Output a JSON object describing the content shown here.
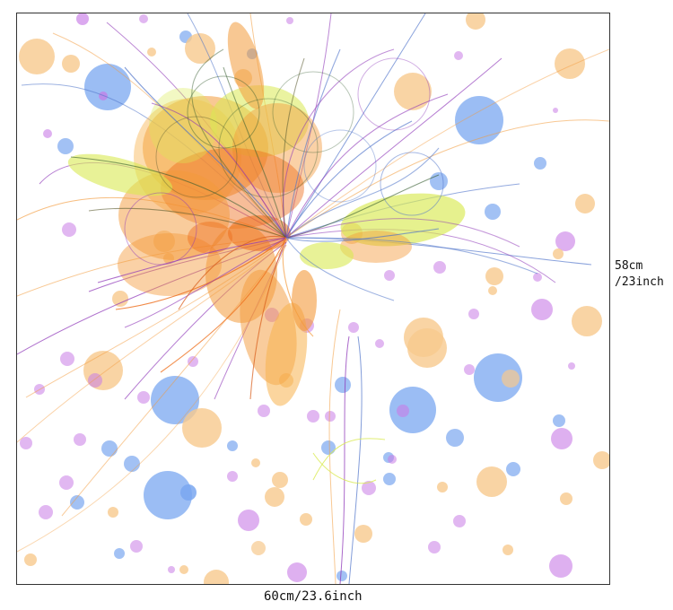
{
  "artwork": {
    "icon": "abstract-flower-illustration",
    "palette": {
      "orange": "#f39a3a",
      "deep_orange": "#ee6d1a",
      "yellow_green": "#d9ea52",
      "blue": "#7aa7f0",
      "purple": "#c87be6",
      "peach": "#f7c98d",
      "line_blue": "#4d72c9",
      "line_purple": "#8d35b8"
    }
  },
  "dimensions": {
    "height_line_1": "58cm",
    "height_line_2": "/23inch",
    "width": "60cm/23.6inch"
  }
}
